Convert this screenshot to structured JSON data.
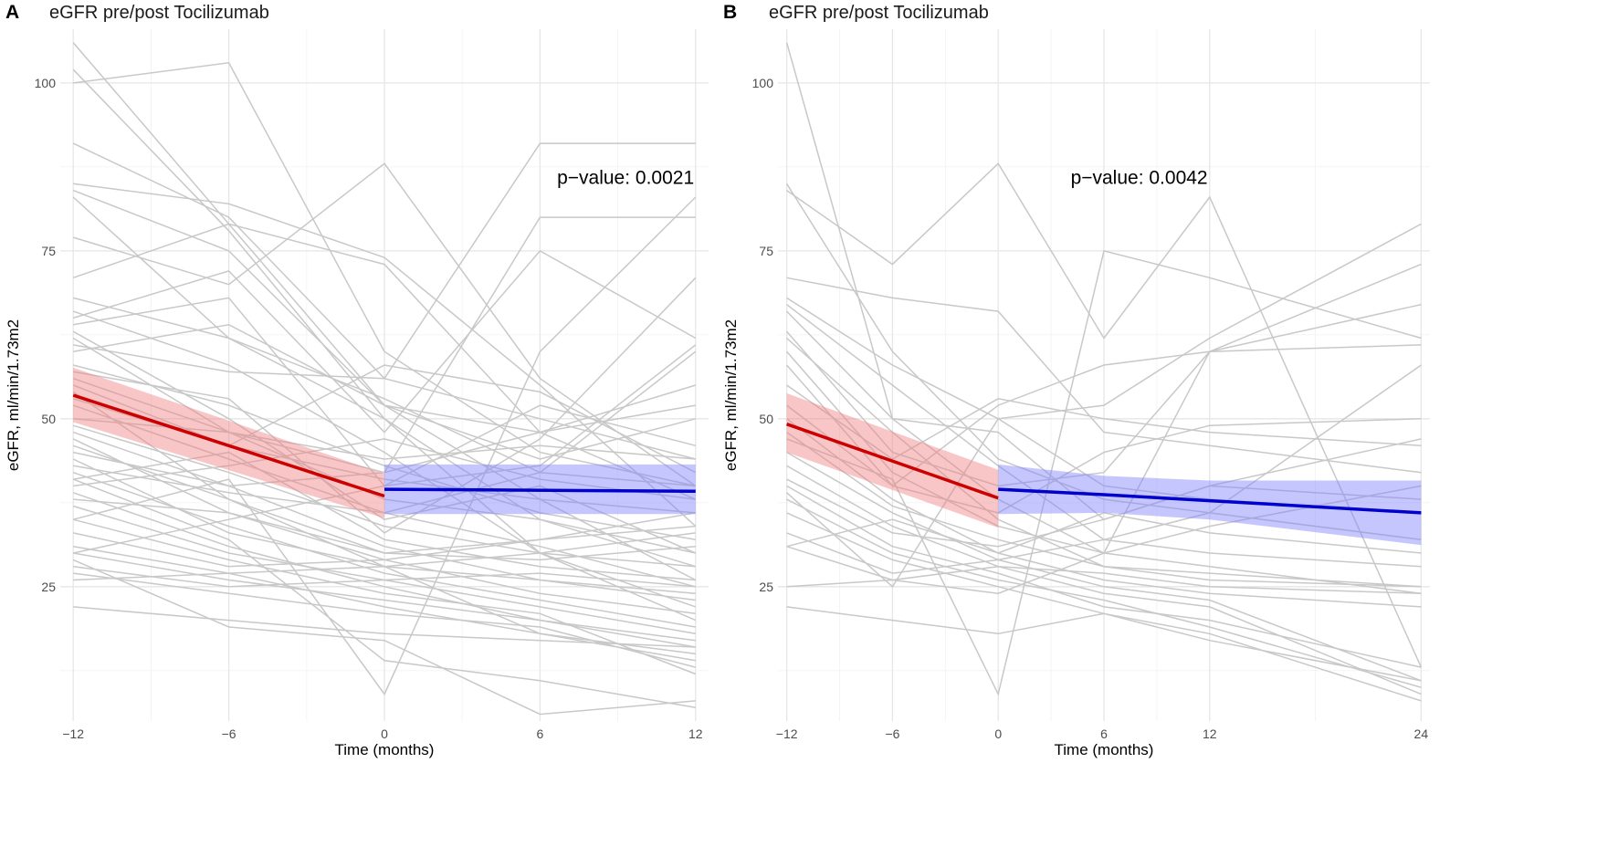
{
  "chart_data": [
    {
      "panel": "A",
      "type": "line",
      "title": "eGFR pre/post Tocilizumab",
      "xlabel": "Time (months)",
      "ylabel": "eGFR, ml/min/1.73m2",
      "x_ticks": [
        -12,
        -6,
        0,
        6,
        12
      ],
      "y_ticks": [
        25,
        50,
        75,
        100
      ],
      "xlim": [
        -12.5,
        12.5
      ],
      "ylim": [
        5,
        108
      ],
      "annotation": "p−value: 0.0021",
      "annotation_at": {
        "x": 9.3,
        "y": 85
      },
      "trajectory_x": [
        -12,
        -6,
        0,
        6,
        12
      ],
      "trajectories": [
        [
          106,
          null,
          52,
          48,
          52
        ],
        [
          102,
          78,
          50,
          35,
          30
        ],
        [
          100,
          103,
          60,
          45,
          40
        ],
        [
          91,
          80,
          56,
          50,
          44
        ],
        [
          85,
          82,
          74,
          55,
          34
        ],
        [
          84,
          75,
          52,
          38,
          26
        ],
        [
          83,
          62,
          50,
          30,
          22
        ],
        [
          77,
          70,
          88,
          56,
          40
        ],
        [
          71,
          79,
          73,
          48,
          38
        ],
        [
          68,
          62,
          53,
          42,
          60
        ],
        [
          66,
          58,
          45,
          30,
          20
        ],
        [
          65,
          72,
          48,
          75,
          62
        ],
        [
          64,
          68,
          40,
          52,
          46
        ],
        [
          63,
          50,
          35,
          40,
          30
        ],
        [
          61,
          57,
          56,
          91,
          91
        ],
        [
          60,
          64,
          52,
          44,
          50
        ],
        [
          58,
          52,
          43,
          36,
          32
        ],
        [
          56,
          48,
          38,
          35,
          28
        ],
        [
          55,
          46,
          41,
          38,
          36
        ],
        [
          54,
          38,
          28,
          18,
          15
        ],
        [
          53,
          46,
          58,
          54,
          42
        ],
        [
          52,
          44,
          36,
          31,
          25
        ],
        [
          50,
          48,
          44,
          46,
          44
        ],
        [
          49,
          42,
          34,
          30,
          28
        ],
        [
          48,
          40,
          31,
          26,
          23
        ],
        [
          47,
          36,
          29,
          24,
          21
        ],
        [
          46,
          38,
          30,
          32,
          34
        ],
        [
          45,
          40,
          42,
          48,
          55
        ],
        [
          44,
          33,
          28,
          26,
          24
        ],
        [
          43,
          39,
          36,
          42,
          40
        ],
        [
          42,
          34,
          27,
          23,
          19
        ],
        [
          41,
          45,
          32,
          28,
          26
        ],
        [
          40,
          43,
          47,
          41,
          38
        ],
        [
          39,
          31,
          25,
          20,
          16
        ],
        [
          38,
          36,
          30,
          29,
          31
        ],
        [
          37,
          30,
          26,
          22,
          18
        ],
        [
          35,
          29,
          24,
          21,
          12
        ],
        [
          33,
          28,
          29,
          32,
          36
        ],
        [
          31,
          27,
          22,
          18,
          14
        ],
        [
          30,
          26,
          23,
          20,
          17
        ],
        [
          28,
          25,
          26,
          27,
          25
        ],
        [
          27,
          24,
          21,
          19,
          13
        ],
        [
          26,
          27,
          28,
          30,
          33
        ],
        [
          22,
          20,
          18,
          17,
          16
        ],
        [
          30,
          35,
          40,
          43,
          61
        ],
        [
          41,
          32,
          14,
          11,
          7
        ],
        [
          35,
          41,
          9,
          60,
          83
        ],
        [
          29,
          19,
          17,
          6,
          8
        ],
        [
          57,
          53,
          33,
          47,
          71
        ],
        [
          62,
          48,
          42,
          80,
          80
        ]
      ],
      "fits": [
        {
          "name": "pre",
          "color": "#cc0000",
          "band_color": "#f08080",
          "x": [
            -12,
            0
          ],
          "y": [
            53.5,
            38.5
          ],
          "ci_lower": [
            49.5,
            35.2
          ],
          "ci_upper": [
            57.6,
            41.8
          ]
        },
        {
          "name": "post",
          "color": "#0000cc",
          "band_color": "#8080ff",
          "x": [
            0,
            12
          ],
          "y": [
            39.5,
            39.2
          ],
          "ci_lower": [
            35.8,
            35.8
          ],
          "ci_upper": [
            43.2,
            43.2
          ]
        }
      ]
    },
    {
      "panel": "B",
      "type": "line",
      "title": "eGFR pre/post Tocilizumab",
      "xlabel": "Time (months)",
      "ylabel": "eGFR, ml/min/1.73m2",
      "x_ticks": [
        -12,
        -6,
        0,
        6,
        12,
        24
      ],
      "y_ticks": [
        25,
        50,
        75,
        100
      ],
      "xlim": [
        -12.5,
        24.5
      ],
      "ylim": [
        5,
        108
      ],
      "annotation": "p−value: 0.0042",
      "annotation_at": {
        "x": 8,
        "y": 85
      },
      "trajectory_x": [
        -12,
        -6,
        0,
        6,
        12,
        24
      ],
      "trajectories": [
        [
          106,
          50,
          48,
          35,
          40,
          38
        ],
        [
          85,
          60,
          44,
          38,
          36,
          32
        ],
        [
          84,
          73,
          88,
          62,
          83,
          13
        ],
        [
          71,
          68,
          66,
          48,
          46,
          42
        ],
        [
          68,
          58,
          50,
          40,
          38,
          36
        ],
        [
          67,
          55,
          43,
          32,
          30,
          28
        ],
        [
          66,
          50,
          38,
          30,
          28,
          24
        ],
        [
          63,
          45,
          40,
          42,
          60,
          73
        ],
        [
          62,
          48,
          35,
          28,
          27,
          25
        ],
        [
          60,
          42,
          34,
          30,
          60,
          61
        ],
        [
          58,
          40,
          52,
          58,
          60,
          67
        ],
        [
          55,
          44,
          53,
          50,
          48,
          46
        ],
        [
          52,
          40,
          36,
          45,
          49,
          50
        ],
        [
          50,
          38,
          30,
          26,
          24,
          22
        ],
        [
          48,
          37,
          32,
          28,
          26,
          25
        ],
        [
          45,
          36,
          29,
          25,
          23,
          11
        ],
        [
          43,
          34,
          28,
          24,
          22,
          9
        ],
        [
          41,
          33,
          31,
          35,
          40,
          47
        ],
        [
          40,
          31,
          27,
          22,
          20,
          13
        ],
        [
          38,
          30,
          26,
          23,
          19,
          10
        ],
        [
          36,
          29,
          25,
          21,
          18,
          8
        ],
        [
          33,
          27,
          29,
          32,
          36,
          58
        ],
        [
          31,
          26,
          24,
          30,
          34,
          40
        ],
        [
          25,
          26,
          28,
          27,
          25,
          24
        ],
        [
          22,
          20,
          18,
          21,
          17,
          11
        ],
        [
          47,
          41,
          9,
          75,
          71,
          62
        ],
        [
          39,
          25,
          50,
          52,
          62,
          79
        ],
        [
          31,
          35,
          30,
          36,
          33,
          30
        ]
      ],
      "fits": [
        {
          "name": "pre",
          "color": "#cc0000",
          "band_color": "#f08080",
          "x": [
            -12,
            0
          ],
          "y": [
            49.2,
            38.2
          ],
          "ci_lower": [
            45.0,
            33.8
          ],
          "ci_upper": [
            53.8,
            42.4
          ]
        },
        {
          "name": "post",
          "color": "#0000cc",
          "band_color": "#8080ff",
          "x": [
            0,
            6,
            12,
            24
          ],
          "y": [
            39.5,
            38.7,
            37.8,
            36.0
          ],
          "ci_lower": [
            35.8,
            36.0,
            35.0,
            31.2
          ],
          "ci_upper": [
            43.2,
            41.5,
            40.8,
            40.8
          ]
        }
      ]
    }
  ]
}
